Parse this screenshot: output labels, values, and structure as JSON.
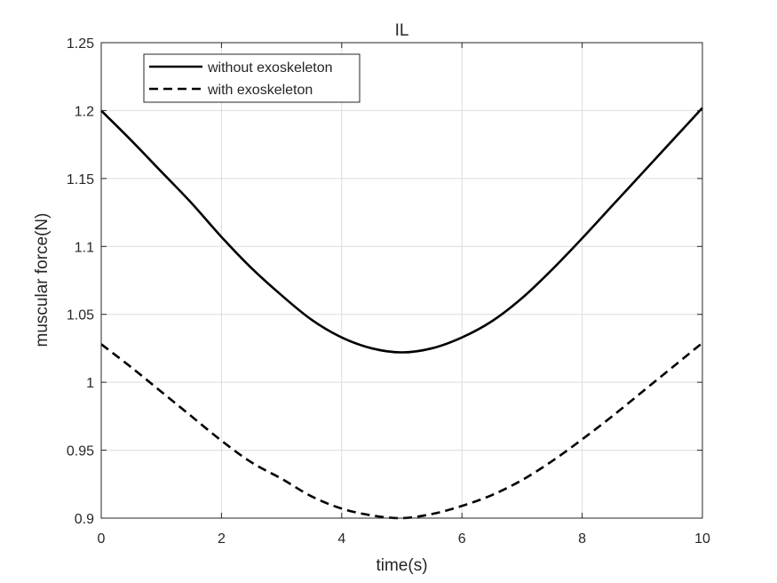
{
  "chart_data": {
    "type": "line",
    "title": "IL",
    "xlabel": "time(s)",
    "ylabel": "muscular force(N)",
    "xlim": [
      0,
      10
    ],
    "ylim": [
      0.9,
      1.25
    ],
    "xticks": [
      0,
      2,
      4,
      6,
      8,
      10
    ],
    "yticks": [
      0.9,
      0.95,
      1,
      1.05,
      1.1,
      1.15,
      1.2,
      1.25
    ],
    "xtick_labels": [
      "0",
      "2",
      "4",
      "6",
      "8",
      "10"
    ],
    "ytick_labels": [
      "0.9",
      "0.95",
      "1",
      "1.05",
      "1.1",
      "1.15",
      "1.2",
      "1.25"
    ],
    "grid": true,
    "legend_position": "top-left",
    "series": [
      {
        "name": "without exoskeleton",
        "style": "solid",
        "color": "#000000",
        "x": [
          0,
          0.5,
          1,
          1.5,
          2,
          2.5,
          3,
          3.5,
          4,
          4.5,
          5,
          5.5,
          6,
          6.5,
          7,
          7.5,
          8,
          8.5,
          9,
          9.5,
          10
        ],
        "y": [
          1.2,
          1.178,
          1.155,
          1.132,
          1.107,
          1.084,
          1.064,
          1.046,
          1.033,
          1.025,
          1.022,
          1.025,
          1.033,
          1.045,
          1.062,
          1.083,
          1.106,
          1.13,
          1.154,
          1.178,
          1.202
        ]
      },
      {
        "name": "with exoskeleton",
        "style": "dashed",
        "color": "#000000",
        "x": [
          0,
          0.5,
          1,
          1.5,
          2,
          2.5,
          3,
          3.5,
          4,
          4.5,
          5,
          5.5,
          6,
          6.5,
          7,
          7.5,
          8,
          8.5,
          9,
          9.5,
          10
        ],
        "y": [
          1.028,
          1.011,
          0.993,
          0.975,
          0.957,
          0.941,
          0.929,
          0.916,
          0.907,
          0.902,
          0.9,
          0.903,
          0.909,
          0.917,
          0.928,
          0.942,
          0.958,
          0.975,
          0.993,
          1.011,
          1.029
        ]
      }
    ]
  }
}
